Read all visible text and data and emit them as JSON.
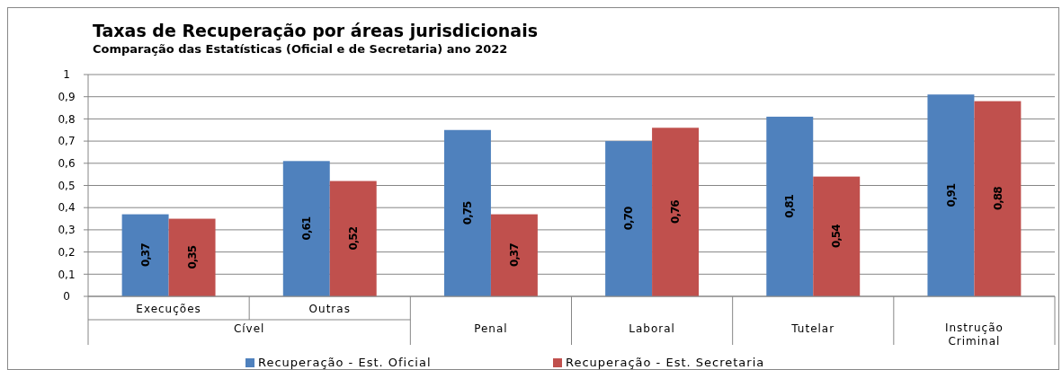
{
  "chart_data": {
    "type": "bar",
    "title": "Taxas de Recuperação por áreas jurisdicionais",
    "subtitle": "Comparação das Estatísticas (Oficial  e de Secretaria) ano 2022",
    "categories": [
      "Execuções",
      "Outras",
      "Penal",
      "Laboral",
      "Tutelar",
      "Instrução Criminal"
    ],
    "annotations": [
      "Cível"
    ],
    "series": [
      {
        "name": "Recuperação - Est. Oficial",
        "color": "#4f81bd",
        "values": [
          0.37,
          0.61,
          0.75,
          0.7,
          0.81,
          0.91
        ],
        "value_labels": [
          "0,37",
          "0,61",
          "0,75",
          "0,70",
          "0,81",
          "0,91"
        ]
      },
      {
        "name": "Recuperação - Est. Secretaria",
        "color": "#c0504d",
        "values": [
          0.35,
          0.52,
          0.37,
          0.76,
          0.54,
          0.88
        ],
        "value_labels": [
          "0,35",
          "0,52",
          "0,37",
          "0,76",
          "0,54",
          "0,88"
        ]
      }
    ],
    "ylim": [
      0,
      1
    ],
    "yticks": [
      0,
      {
        "value": 0.1,
        "label": "0,1"
      },
      {
        "value": 0.2,
        "label": "0,2"
      },
      {
        "value": 0.3,
        "label": "0,3"
      },
      {
        "value": 0.4,
        "label": "0,4"
      },
      {
        "value": 0.5,
        "label": "0,5"
      },
      {
        "value": 0.6,
        "label": "0,6"
      },
      {
        "value": 0.7,
        "label": "0,7"
      },
      {
        "value": 0.8,
        "label": "0,8"
      },
      {
        "value": 0.9,
        "label": "0,9"
      },
      1
    ],
    "grid": "y",
    "legend": "bottom"
  }
}
